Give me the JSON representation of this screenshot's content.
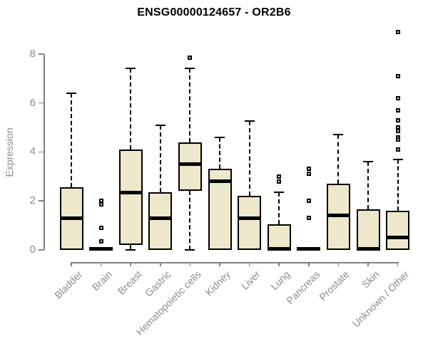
{
  "chart_data": {
    "type": "boxplot",
    "title": "ENSG00000124657 - OR2B6",
    "xlabel": "",
    "ylabel": "Expression",
    "y_ticks": [
      0,
      2,
      4,
      6,
      8
    ],
    "ylim": [
      0,
      9.2
    ],
    "grid": false,
    "categories": [
      "Bladder",
      "Brain",
      "Breast",
      "Gastric",
      "Hematopoietic cells",
      "Kidney",
      "Liver",
      "Lung",
      "Pancreas",
      "Prostate",
      "Skin",
      "Unknown / Other"
    ],
    "series": [
      {
        "name": "Bladder",
        "whisker_low": 0,
        "q1": 0,
        "median": 1.3,
        "q3": 2.55,
        "whisker_high": 6.4,
        "outliers": []
      },
      {
        "name": "Brain",
        "whisker_low": 0,
        "q1": 0,
        "median": 0.05,
        "q3": 0.1,
        "whisker_high": 0.1,
        "outliers": [
          2.0,
          1.85,
          0.9,
          0.35
        ]
      },
      {
        "name": "Breast",
        "whisker_low": 0,
        "q1": 0.2,
        "median": 2.35,
        "q3": 4.1,
        "whisker_high": 7.4,
        "outliers": []
      },
      {
        "name": "Gastric",
        "whisker_low": 0,
        "q1": 0,
        "median": 1.3,
        "q3": 2.35,
        "whisker_high": 5.1,
        "outliers": []
      },
      {
        "name": "Hematopoietic cells",
        "whisker_low": 0,
        "q1": 2.4,
        "median": 3.5,
        "q3": 4.4,
        "whisker_high": 7.4,
        "outliers": [
          7.85
        ]
      },
      {
        "name": "Kidney",
        "whisker_low": 0,
        "q1": 0,
        "median": 2.8,
        "q3": 3.3,
        "whisker_high": 4.6,
        "outliers": []
      },
      {
        "name": "Liver",
        "whisker_low": 0,
        "q1": 0,
        "median": 1.3,
        "q3": 2.2,
        "whisker_high": 5.25,
        "outliers": []
      },
      {
        "name": "Lung",
        "whisker_low": 0,
        "q1": 0,
        "median": 0.05,
        "q3": 1.05,
        "whisker_high": 2.35,
        "outliers": [
          3.0,
          2.8
        ]
      },
      {
        "name": "Pancreas",
        "whisker_low": 0,
        "q1": 0,
        "median": 0.05,
        "q3": 0.1,
        "whisker_high": 0.1,
        "outliers": [
          3.3,
          3.1,
          2.0,
          1.3
        ]
      },
      {
        "name": "Prostate",
        "whisker_low": 0,
        "q1": 0,
        "median": 1.4,
        "q3": 2.7,
        "whisker_high": 4.7,
        "outliers": []
      },
      {
        "name": "Skin",
        "whisker_low": 0,
        "q1": 0,
        "median": 0.05,
        "q3": 1.65,
        "whisker_high": 3.6,
        "outliers": []
      },
      {
        "name": "Unknown / Other",
        "whisker_low": 0,
        "q1": 0,
        "median": 0.5,
        "q3": 1.6,
        "whisker_high": 3.7,
        "outliers": [
          8.9,
          7.1,
          6.2,
          5.7,
          5.3,
          5.0,
          4.85,
          4.6,
          4.5,
          4.1
        ]
      }
    ],
    "colors": {
      "box_fill": "#EDE7CC",
      "box_border": "#000000",
      "median": "#000000",
      "axis": "#7f7f7f",
      "tick_label": "#8c8c8c",
      "title": "#000000"
    }
  }
}
